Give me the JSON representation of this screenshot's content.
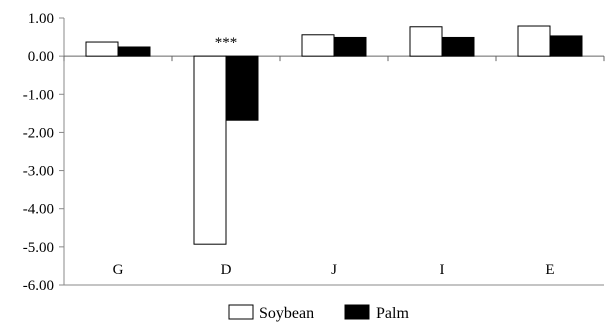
{
  "chart_data": {
    "type": "bar",
    "title": "",
    "xlabel": "",
    "ylabel": "",
    "categories": [
      "G",
      "D",
      "J",
      "I",
      "E"
    ],
    "series": [
      {
        "name": "Soybean",
        "values": [
          0.37,
          -4.93,
          0.56,
          0.77,
          0.79
        ],
        "fill": "#ffffff",
        "stroke": "#000000"
      },
      {
        "name": "Palm",
        "values": [
          0.24,
          -1.68,
          0.49,
          0.49,
          0.53
        ],
        "fill": "#000000",
        "stroke": "#000000"
      }
    ],
    "ylim": [
      -6,
      1
    ],
    "yticks": [
      1,
      0,
      -1,
      -2,
      -3,
      -4,
      -5,
      -6
    ],
    "ytick_labels": [
      "1.00",
      "0.00",
      "-1.00",
      "-2.00",
      "-3.00",
      "-4.00",
      "-5.00",
      "-6.00"
    ],
    "grid": false,
    "legend_position": "bottom-center",
    "annotations": [
      {
        "category": "D",
        "text": "***"
      }
    ]
  }
}
